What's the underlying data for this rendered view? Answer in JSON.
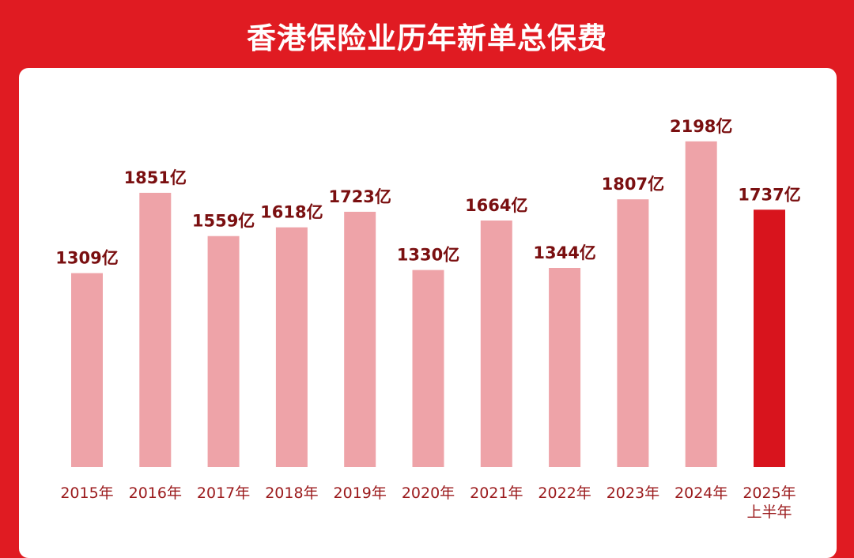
{
  "chart_data": {
    "type": "bar",
    "title": "香港保险业历年新单总保费",
    "unit": "亿",
    "categories": [
      "2015年",
      "2016年",
      "2017年",
      "2018年",
      "2019年",
      "2020年",
      "2021年",
      "2022年",
      "2023年",
      "2024年",
      "2025年上半年"
    ],
    "category_lines": [
      [
        "2015年"
      ],
      [
        "2016年"
      ],
      [
        "2017年"
      ],
      [
        "2018年"
      ],
      [
        "2019年"
      ],
      [
        "2020年"
      ],
      [
        "2021年"
      ],
      [
        "2022年"
      ],
      [
        "2023年"
      ],
      [
        "2024年"
      ],
      [
        "2025年",
        "上半年"
      ]
    ],
    "values": [
      1309,
      1851,
      1559,
      1618,
      1723,
      1330,
      1664,
      1344,
      1807,
      2198,
      1737
    ],
    "data_labels": [
      "1309亿",
      "1851亿",
      "1559亿",
      "1618亿",
      "1723亿",
      "1330亿",
      "1664亿",
      "1344亿",
      "1807亿",
      "2198亿",
      "1737亿"
    ],
    "highlight_index": 10,
    "colors": {
      "bar": "#eea3a8",
      "highlight": "#d8141d",
      "background": "#e01b22",
      "panel": "#ffffff",
      "label": "#7a0f10",
      "tick": "#9b1a1c"
    },
    "xlabel": "",
    "ylabel": "",
    "grid": false,
    "legend": "none"
  }
}
